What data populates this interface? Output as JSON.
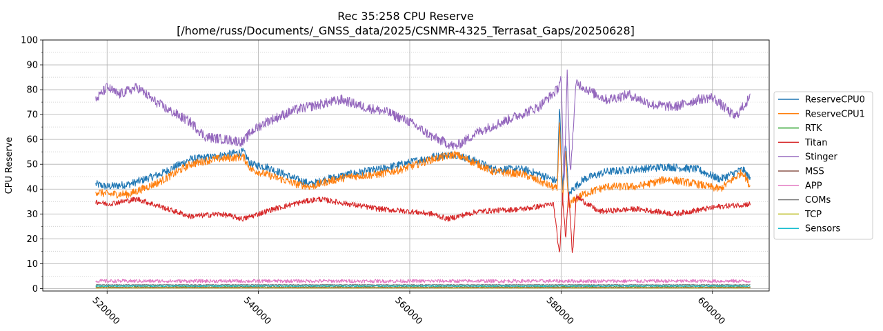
{
  "chart_data": {
    "type": "line",
    "title": "Rec 35:258 CPU Reserve",
    "subtitle": "[/home/russ/Documents/_GNSS_data/2025/CSNMR-4325_Terrasat_Gaps/20250628]",
    "xlabel": "",
    "ylabel": "CPU Reserve",
    "xlim": [
      511500,
      607500
    ],
    "ylim": [
      -1,
      100
    ],
    "xticks": [
      520000,
      540000,
      560000,
      580000,
      600000
    ],
    "xtick_labels": [
      "520000",
      "540000",
      "560000",
      "580000",
      "600000"
    ],
    "yticks": [
      0,
      10,
      20,
      30,
      40,
      50,
      60,
      70,
      80,
      90,
      100
    ],
    "ytick_labels": [
      "0",
      "10",
      "20",
      "30",
      "40",
      "50",
      "60",
      "70",
      "80",
      "90",
      "100"
    ],
    "grid": "major solid, minor dotted",
    "legend_position": "center-right outside",
    "series": [
      {
        "name": "ReserveCPU0",
        "color": "#1f77b4",
        "noise": 1.6,
        "x": [
          518500,
          520000,
          523000,
          527000,
          531000,
          534000,
          538000,
          539000,
          541000,
          545000,
          547000,
          549000,
          552000,
          556000,
          559000,
          563000,
          566000,
          569000,
          571000,
          575000,
          578000,
          579500,
          579800,
          580200,
          580600,
          581000,
          581500,
          583000,
          586000,
          590000,
          594000,
          598000,
          601000,
          604000,
          605000
        ],
        "y": [
          42,
          41,
          42,
          46,
          52,
          53,
          55,
          50,
          49,
          44,
          42,
          44,
          46,
          48,
          50,
          53,
          54,
          51,
          48,
          48,
          45,
          43,
          74,
          40,
          60,
          37,
          40,
          44,
          47,
          48,
          49,
          48,
          44,
          48,
          44
        ]
      },
      {
        "name": "ReserveCPU1",
        "color": "#ff7f0e",
        "noise": 1.6,
        "x": [
          518500,
          520000,
          523000,
          527000,
          531000,
          534000,
          538000,
          539000,
          541000,
          545000,
          547000,
          549000,
          552000,
          556000,
          559000,
          563000,
          566000,
          569000,
          571000,
          575000,
          578000,
          579500,
          579800,
          580200,
          580600,
          581000,
          581500,
          583000,
          586000,
          590000,
          594000,
          598000,
          601000,
          604000,
          605000
        ],
        "y": [
          39,
          38,
          38,
          43,
          50,
          52,
          53,
          48,
          46,
          42,
          41,
          43,
          45,
          46,
          48,
          52,
          54,
          50,
          47,
          46,
          42,
          40,
          68,
          34,
          55,
          33,
          35,
          38,
          41,
          41,
          44,
          42,
          40,
          47,
          41
        ]
      },
      {
        "name": "RTK",
        "color": "#2ca02c",
        "noise": 0.2,
        "x": [
          518500,
          605000
        ],
        "y": [
          1,
          1
        ]
      },
      {
        "name": "Titan",
        "color": "#d62728",
        "noise": 1.1,
        "x": [
          518500,
          520000,
          524000,
          527000,
          531000,
          535000,
          538000,
          539000,
          542000,
          546000,
          548000,
          552000,
          556000,
          560000,
          563000,
          565000,
          569000,
          575000,
          579000,
          579800,
          580200,
          580600,
          581000,
          581500,
          582000,
          585000,
          590000,
          595000,
          601000,
          605000
        ],
        "y": [
          35,
          34,
          36,
          33,
          29,
          30,
          28,
          29,
          32,
          35,
          36,
          34,
          32,
          31,
          30,
          28,
          31,
          32,
          34,
          13,
          38,
          20,
          40,
          13,
          37,
          31,
          32,
          30,
          33,
          34
        ]
      },
      {
        "name": "Stinger",
        "color": "#9467bd",
        "noise": 2.0,
        "x": [
          518500,
          520000,
          521500,
          524000,
          526000,
          528000,
          531000,
          533000,
          538000,
          539000,
          541000,
          545000,
          548000,
          551000,
          554000,
          557000,
          560000,
          563000,
          566000,
          569000,
          573000,
          577000,
          579500,
          580000,
          580400,
          580800,
          581200,
          582000,
          584000,
          586000,
          589000,
          592000,
          595000,
          598000,
          600000,
          603000,
          605000
        ],
        "y": [
          76,
          81,
          78,
          81,
          76,
          72,
          67,
          61,
          59,
          63,
          67,
          72,
          74,
          76,
          73,
          71,
          67,
          61,
          57,
          63,
          68,
          73,
          80,
          85,
          40,
          88,
          45,
          83,
          79,
          76,
          78,
          74,
          73,
          76,
          77,
          69,
          77
        ]
      },
      {
        "name": "MSS",
        "color": "#8c564b",
        "noise": 0.2,
        "x": [
          518500,
          605000
        ],
        "y": [
          0.5,
          0.5
        ]
      },
      {
        "name": "APP",
        "color": "#e377c2",
        "noise": 0.7,
        "x": [
          518500,
          605000
        ],
        "y": [
          3,
          3
        ]
      },
      {
        "name": "COMs",
        "color": "#7f7f7f",
        "noise": 0.2,
        "x": [
          518500,
          605000
        ],
        "y": [
          1.5,
          1.5
        ]
      },
      {
        "name": "TCP",
        "color": "#bcbd22",
        "noise": 0.1,
        "x": [
          518500,
          605000
        ],
        "y": [
          0.2,
          0.2
        ]
      },
      {
        "name": "Sensors",
        "color": "#17becf",
        "noise": 0.2,
        "x": [
          518500,
          605000
        ],
        "y": [
          1,
          1
        ]
      }
    ]
  }
}
